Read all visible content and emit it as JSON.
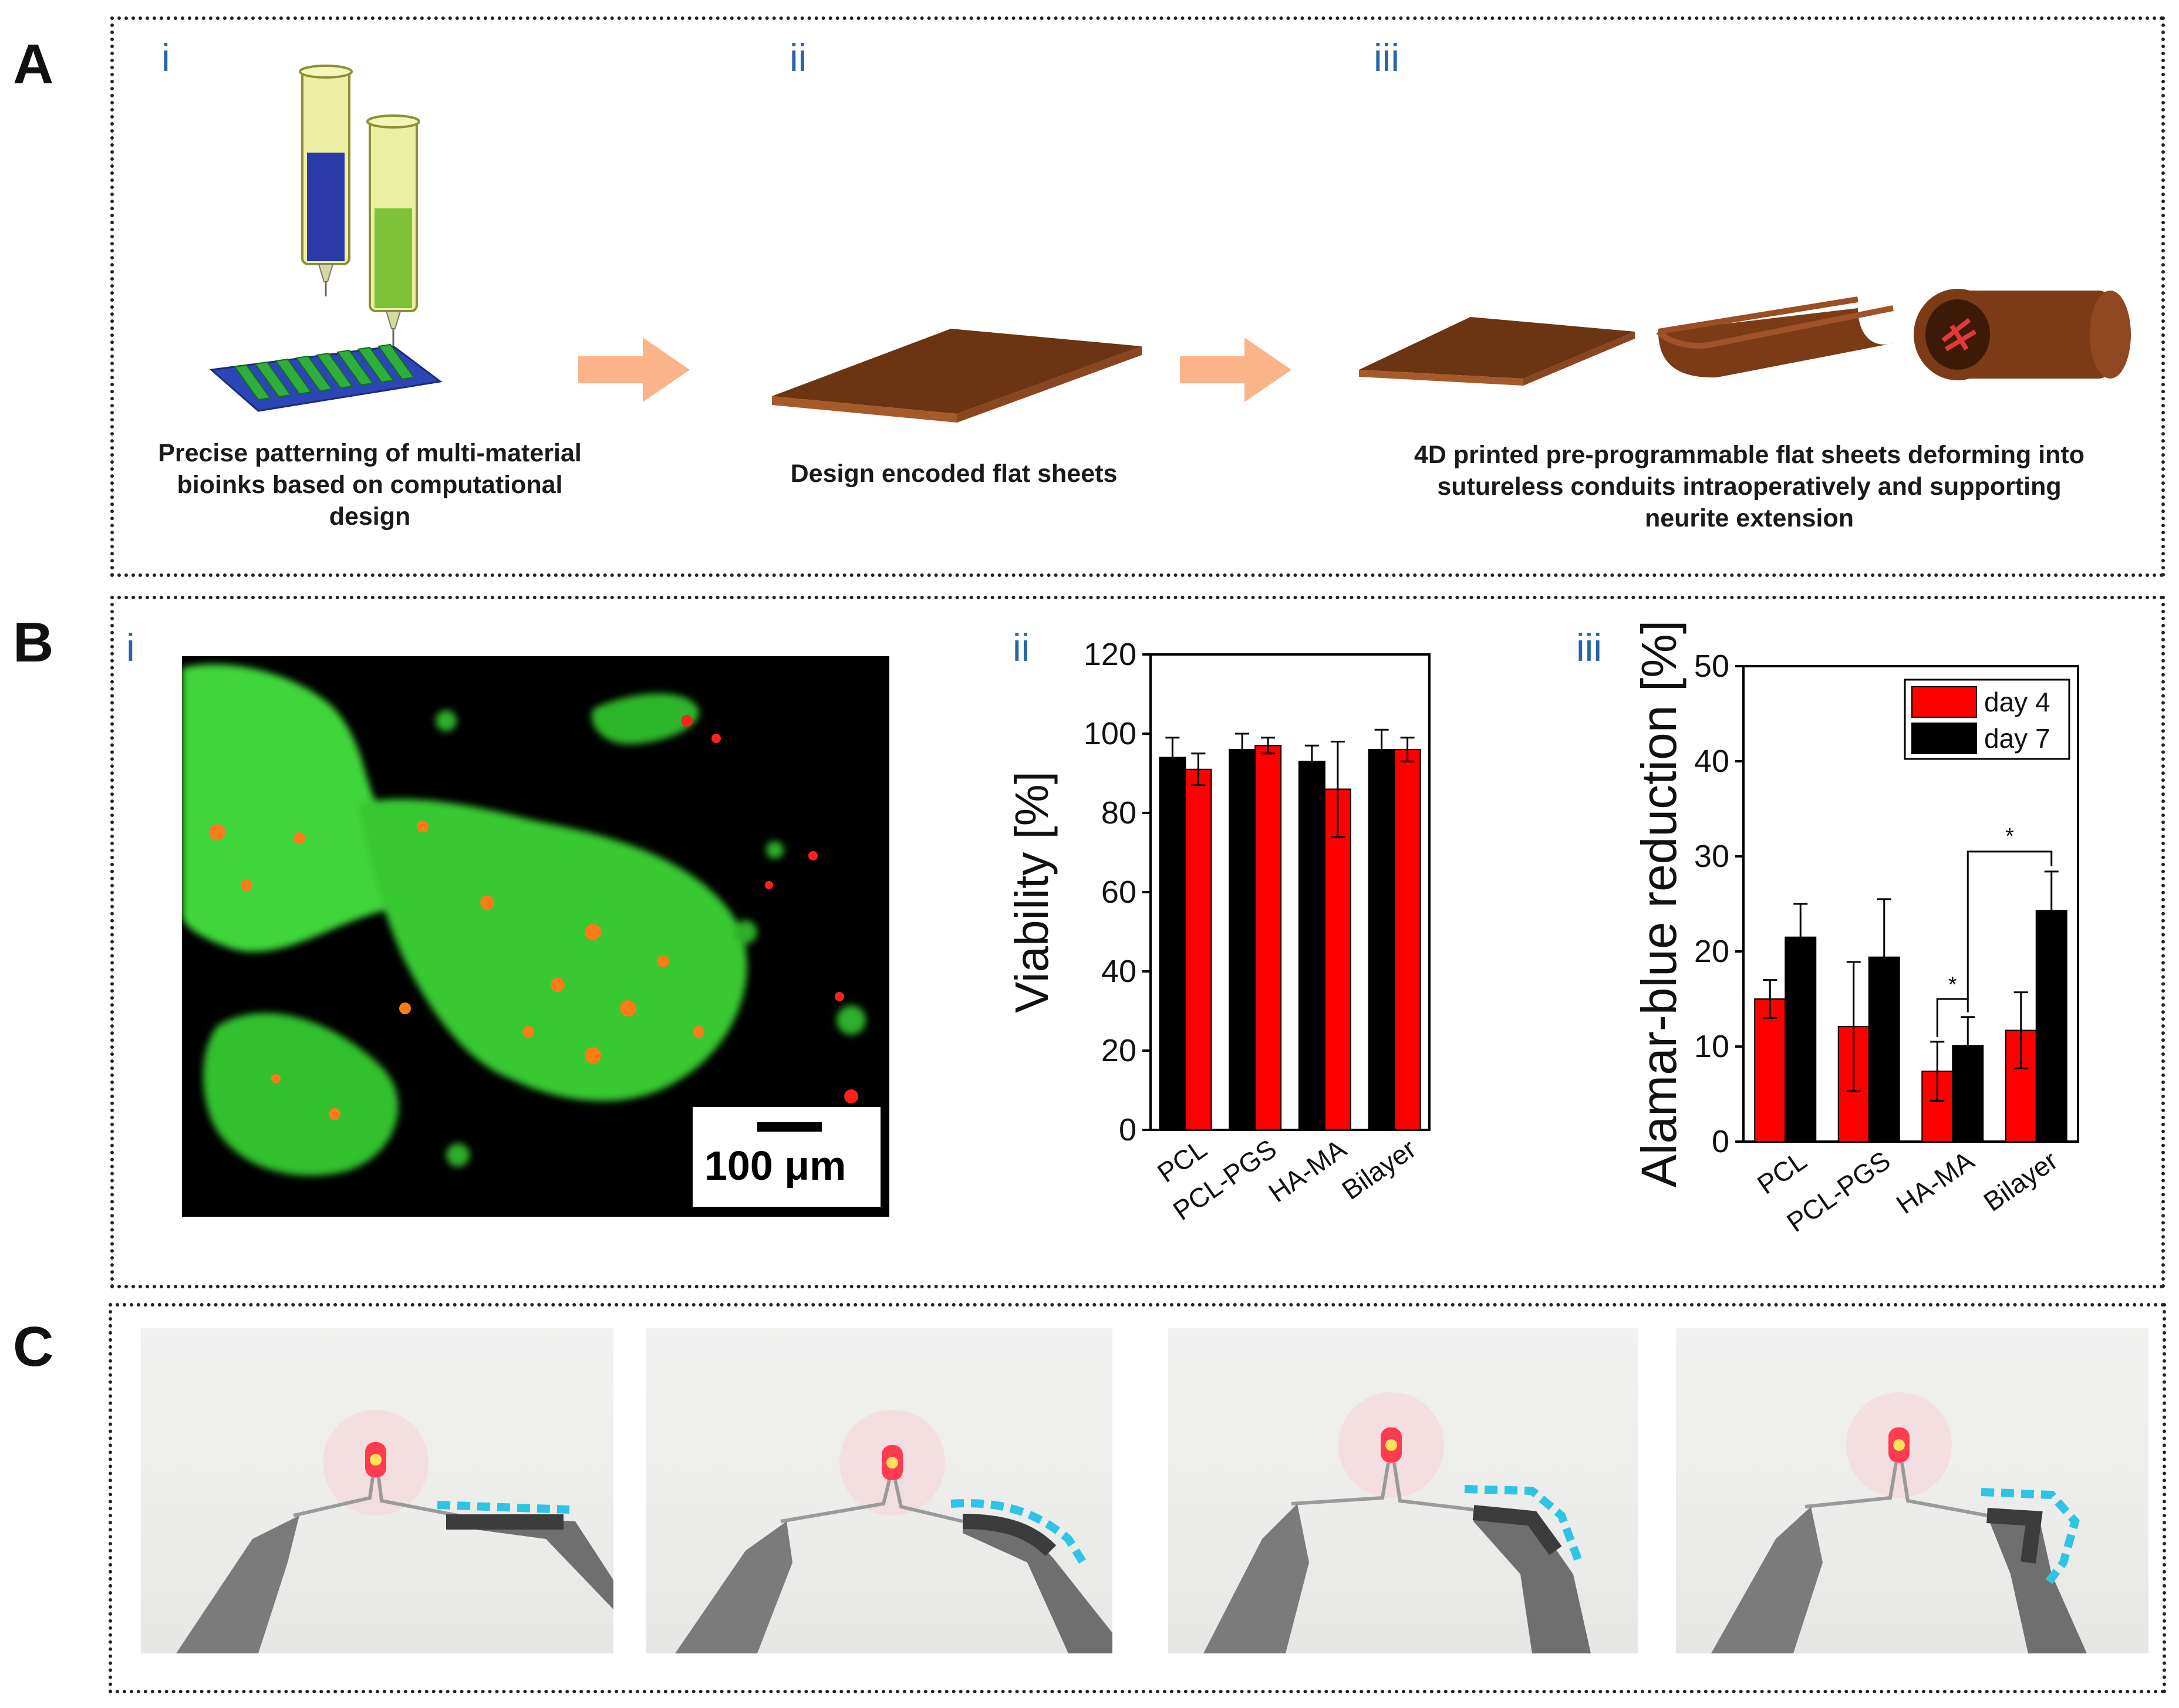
{
  "panels": {
    "A": {
      "letter": "A",
      "steps": [
        {
          "numeral": "i",
          "caption_lines": [
            "Precise patterning of multi-material",
            "bioinks based on computational design"
          ]
        },
        {
          "numeral": "ii",
          "caption_lines": [
            "Design encoded flat sheets"
          ]
        },
        {
          "numeral": "iii",
          "caption_lines": [
            "4D printed pre-programmable flat sheets deforming into",
            "sutureless conduits intraoperatively and supporting",
            "neurite extension"
          ]
        }
      ]
    },
    "B": {
      "letter": "B",
      "numerals": [
        "i",
        "ii",
        "iii"
      ],
      "scale_bar": "100 μm"
    },
    "C": {
      "letter": "C"
    }
  },
  "colors": {
    "red": "#ff0000",
    "black": "#000000",
    "arrow": "#fbb48a",
    "sheet": "#6b3412",
    "cyan": "#2ec4e6",
    "numeral": "#2a64a8"
  },
  "chart_data": [
    {
      "type": "bar",
      "ylabel": "Viability [%]",
      "ylim": [
        0,
        120
      ],
      "yticks": [
        0,
        20,
        40,
        60,
        80,
        100,
        120
      ],
      "categories": [
        "PCL",
        "PCL-PGS",
        "HA-MA",
        "Bilayer"
      ],
      "series": [
        {
          "color": "#000000",
          "values": [
            94,
            96,
            93,
            96
          ],
          "errors": [
            5,
            4,
            4,
            5
          ]
        },
        {
          "color": "#ff0000",
          "values": [
            91,
            97,
            86,
            96
          ],
          "errors": [
            4,
            2,
            12,
            3
          ]
        }
      ]
    },
    {
      "type": "bar",
      "ylabel": "Alamar-blue reduction [%]",
      "ylim": [
        0,
        50
      ],
      "yticks": [
        0,
        10,
        20,
        30,
        40,
        50
      ],
      "categories": [
        "PCL",
        "PCL-PGS",
        "HA-MA",
        "Bilayer"
      ],
      "legend_position": "top-right",
      "series": [
        {
          "name": "day 4",
          "color": "#ff0000",
          "values": [
            15,
            12.1,
            7.4,
            11.7
          ],
          "errors": [
            2,
            6.8,
            3.1,
            4
          ]
        },
        {
          "name": "day 7",
          "color": "#000000",
          "values": [
            21.5,
            19.4,
            10.1,
            24.3
          ],
          "errors": [
            3.5,
            6.1,
            3,
            4.1
          ]
        }
      ],
      "significance": [
        "*",
        "*"
      ]
    }
  ]
}
